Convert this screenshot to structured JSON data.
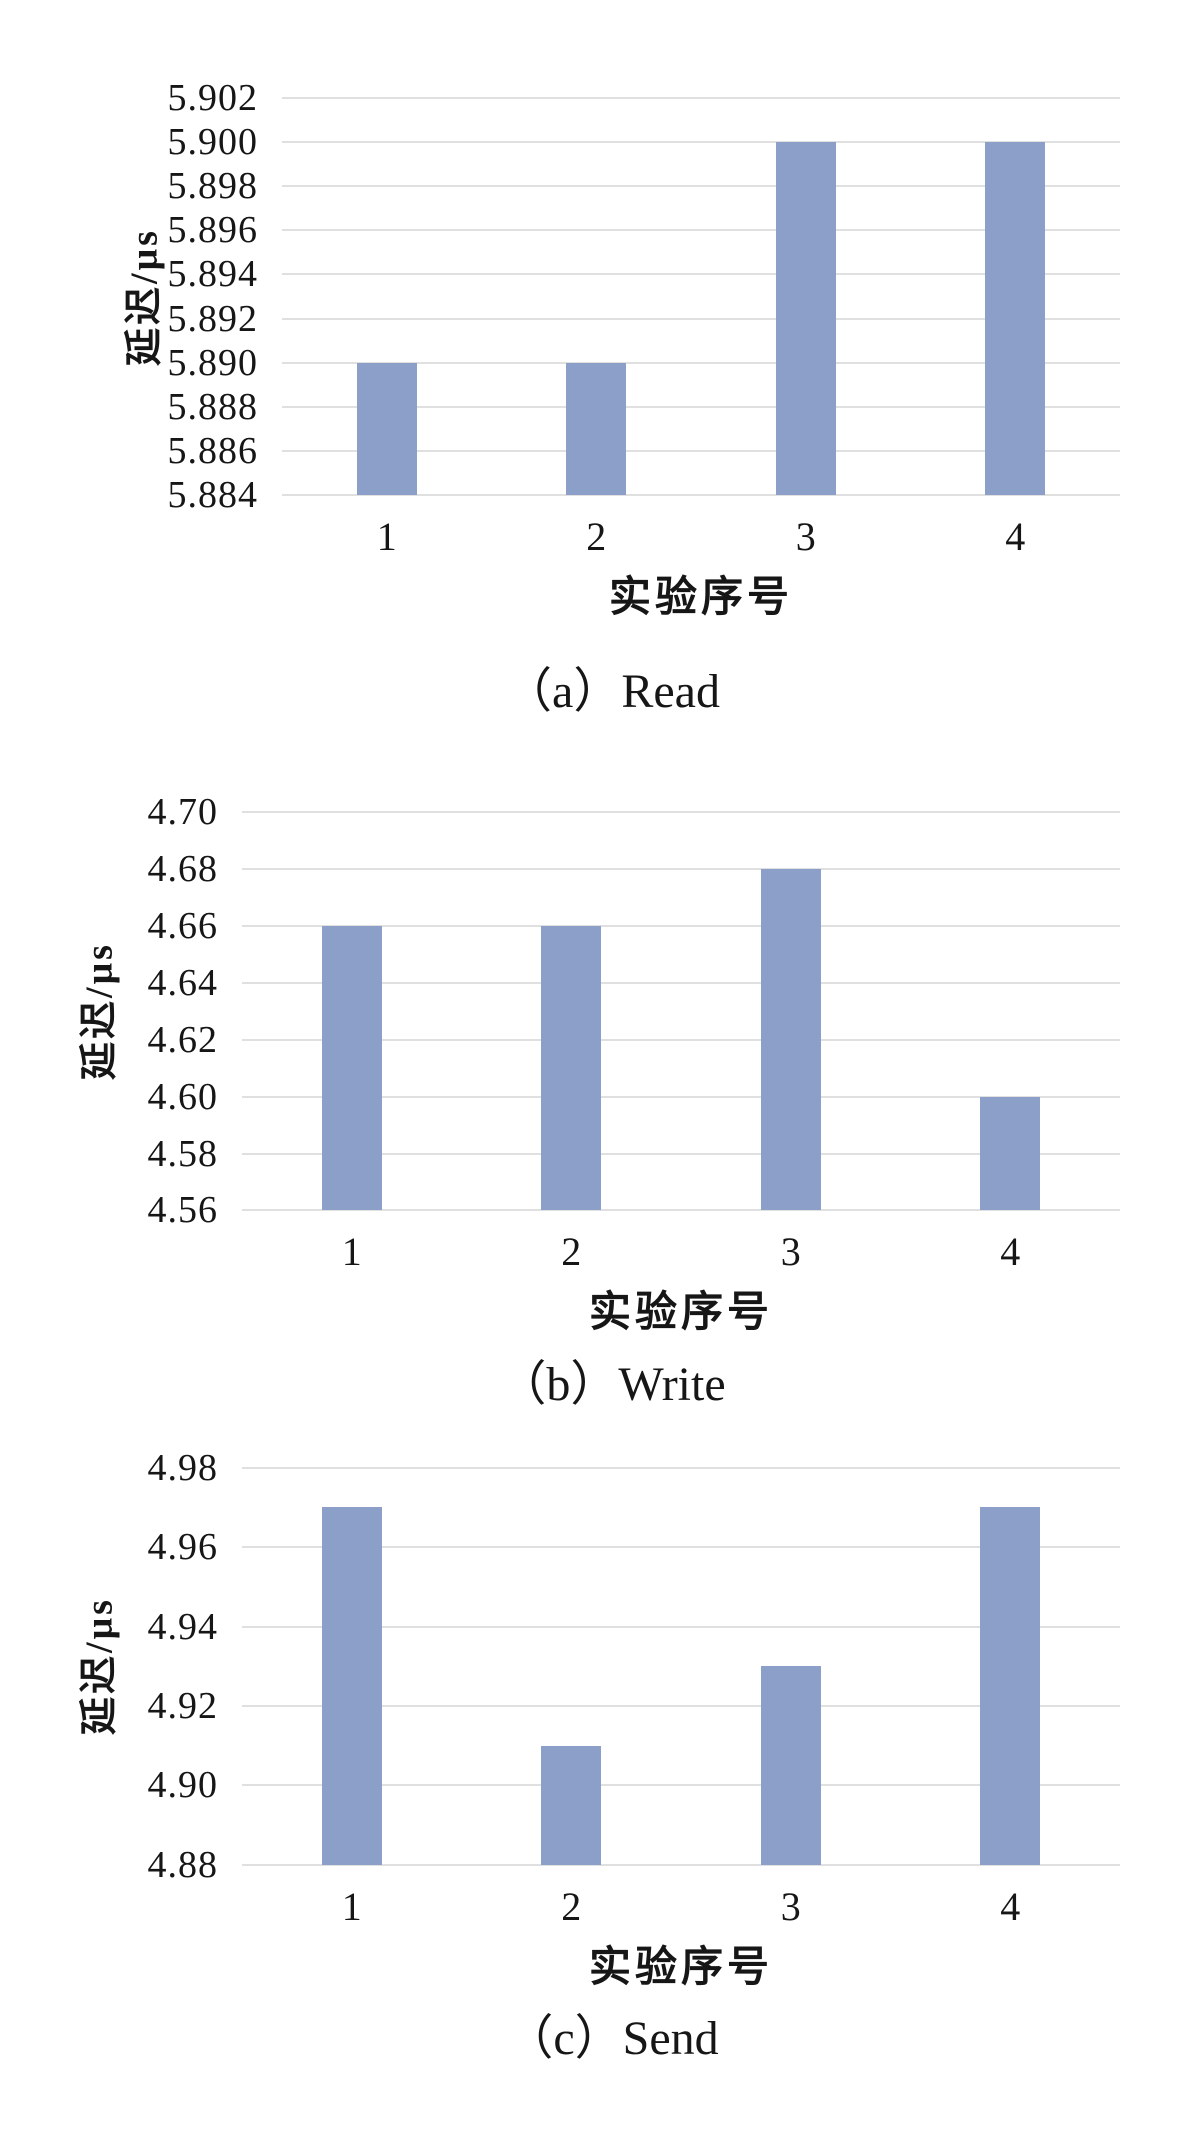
{
  "page": {
    "background": "#ffffff",
    "text_color": "#161616"
  },
  "chart_data": [
    {
      "type": "bar",
      "title": "（a）Read",
      "categories": [
        "1",
        "2",
        "3",
        "4"
      ],
      "values": [
        5.89,
        5.89,
        5.9,
        5.9
      ],
      "xlabel": "实验序号",
      "ylabel": "延迟/μs",
      "ylim": [
        5.884,
        5.902
      ],
      "yticks": [
        "5.902",
        "5.900",
        "5.898",
        "5.896",
        "5.894",
        "5.892",
        "5.890",
        "5.888",
        "5.886",
        "5.884"
      ],
      "grid": true,
      "legend_position": "none",
      "bar_color": "#8B9FC8",
      "gridline_color": "#e0e0e0"
    },
    {
      "type": "bar",
      "title": "（b）Write",
      "categories": [
        "1",
        "2",
        "3",
        "4"
      ],
      "values": [
        4.66,
        4.66,
        4.68,
        4.6
      ],
      "xlabel": "实验序号",
      "ylabel": "延迟/μs",
      "ylim": [
        4.56,
        4.7
      ],
      "yticks": [
        "4.70",
        "4.68",
        "4.66",
        "4.64",
        "4.62",
        "4.60",
        "4.58",
        "4.56"
      ],
      "grid": true,
      "legend_position": "none",
      "bar_color": "#8B9FC8",
      "gridline_color": "#e0e0e0"
    },
    {
      "type": "bar",
      "title": "（c）Send",
      "categories": [
        "1",
        "2",
        "3",
        "4"
      ],
      "values": [
        4.97,
        4.91,
        4.93,
        4.97
      ],
      "xlabel": "实验序号",
      "ylabel": "延迟/μs",
      "ylim": [
        4.88,
        4.98
      ],
      "yticks": [
        "4.98",
        "4.96",
        "4.94",
        "4.92",
        "4.90",
        "4.88"
      ],
      "grid": true,
      "legend_position": "none",
      "bar_color": "#8B9FC8",
      "gridline_color": "#e0e0e0"
    }
  ]
}
